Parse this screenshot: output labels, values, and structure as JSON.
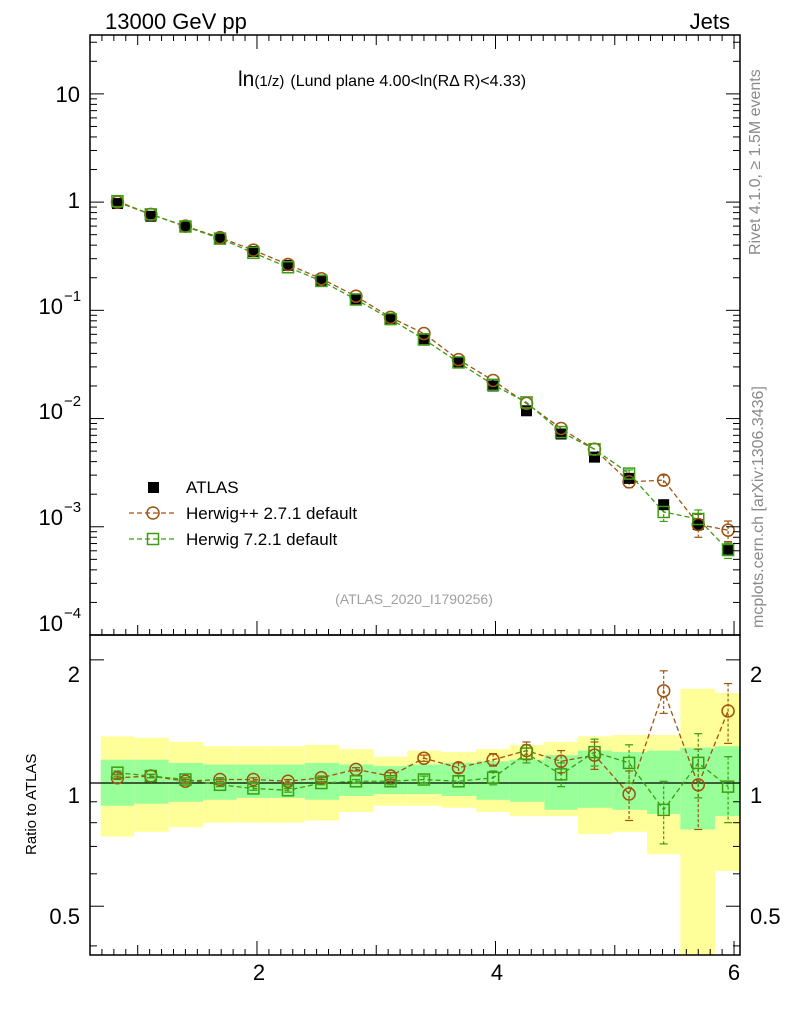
{
  "header": {
    "left": "13000 GeV pp",
    "right": "Jets"
  },
  "plot_title": {
    "main": "ln",
    "paren": "(1/z)",
    "rest": "(Lund plane 4.00<ln(RΔ R)<4.33)"
  },
  "side_labels": {
    "rivet": "Rivet 4.1.0, ≥ 1.5M events",
    "mcplots": "mcplots.cern.ch [arXiv:1306.3436]"
  },
  "watermark": "(ATLAS_2020_I1790256)",
  "ratio_ylabel": "Ratio to ATLAS",
  "upper_y_ticks": [
    {
      "base": "10",
      "exp": ""
    },
    {
      "base": "1",
      "exp": ""
    },
    {
      "base": "10",
      "exp": "−1"
    },
    {
      "base": "10",
      "exp": "−2"
    },
    {
      "base": "10",
      "exp": "−3"
    },
    {
      "base": "10",
      "exp": "−4"
    }
  ],
  "ratio_y_ticks": [
    "2",
    "1",
    "0.5"
  ],
  "x_ticks": [
    "2",
    "4",
    "6"
  ],
  "legend": {
    "atlas": "ATLAS",
    "herwigpp": "Herwig++ 2.7.1 default",
    "herwig7": "Herwig 7.2.1 default"
  },
  "colors": {
    "atlas": "#000000",
    "herwigpp": "#a0520f",
    "herwig7": "#3c9c12",
    "band_inner": "#99ff99",
    "band_outer": "#ffff99"
  },
  "chart_data": {
    "type": "scatter",
    "x_range": [
      0.6,
      6.05
    ],
    "y_range_log": [
      0.0001,
      35
    ],
    "ratio_range_log": [
      0.38,
      2.3
    ],
    "bins": [
      [
        0.69,
        0.97
      ],
      [
        0.97,
        1.26
      ],
      [
        1.26,
        1.55
      ],
      [
        1.55,
        1.83
      ],
      [
        1.83,
        2.12
      ],
      [
        2.12,
        2.4
      ],
      [
        2.4,
        2.69
      ],
      [
        2.69,
        2.98
      ],
      [
        2.98,
        3.26
      ],
      [
        3.26,
        3.55
      ],
      [
        3.55,
        3.84
      ],
      [
        3.84,
        4.12
      ],
      [
        4.12,
        4.41
      ],
      [
        4.41,
        4.69
      ],
      [
        4.69,
        4.98
      ],
      [
        4.98,
        5.27
      ],
      [
        5.27,
        5.55
      ],
      [
        5.55,
        5.84
      ],
      [
        5.84,
        6.05
      ]
    ],
    "x": [
      0.83,
      1.11,
      1.4,
      1.69,
      1.97,
      2.26,
      2.54,
      2.83,
      3.12,
      3.4,
      3.69,
      3.98,
      4.26,
      4.55,
      4.83,
      5.12,
      5.41,
      5.7,
      5.95
    ],
    "series": [
      {
        "name": "ATLAS",
        "values": [
          0.97,
          0.74,
          0.59,
          0.46,
          0.35,
          0.26,
          0.19,
          0.125,
          0.083,
          0.053,
          0.033,
          0.02,
          0.0118,
          0.0072,
          0.0044,
          0.0028,
          0.0016,
          0.00105,
          0.00062
        ]
      },
      {
        "name": "Herwig++ 2.7.1 default",
        "values": [
          1.0,
          0.77,
          0.6,
          0.47,
          0.36,
          0.265,
          0.196,
          0.135,
          0.086,
          0.061,
          0.035,
          0.0225,
          0.0138,
          0.0081,
          0.0052,
          0.0026,
          0.0027,
          0.00105,
          0.00093
        ],
        "errors": [
          0,
          0,
          0,
          0,
          0,
          0,
          0,
          0,
          0,
          0,
          0,
          0,
          0,
          0,
          0,
          0.0003,
          0.0003,
          0.00025,
          0.0002
        ]
      },
      {
        "name": "Herwig 7.2.1 default",
        "values": [
          1.02,
          0.77,
          0.595,
          0.46,
          0.34,
          0.25,
          0.187,
          0.126,
          0.083,
          0.054,
          0.033,
          0.0205,
          0.0141,
          0.0075,
          0.0052,
          0.0031,
          0.00137,
          0.00118,
          0.00061
        ],
        "errors": [
          0,
          0,
          0,
          0,
          0,
          0,
          0,
          0,
          0,
          0,
          0,
          0,
          0,
          0,
          0,
          0.00025,
          0.00025,
          0.00025,
          0.0001
        ]
      }
    ],
    "ratio": {
      "herwigpp": [
        1.03,
        1.04,
        1.01,
        1.02,
        1.02,
        1.01,
        1.03,
        1.08,
        1.04,
        1.15,
        1.09,
        1.14,
        1.2,
        1.13,
        1.17,
        0.94,
        1.68,
        0.99,
        1.5
      ],
      "herwigpp_err": [
        0.01,
        0.01,
        0.01,
        0.01,
        0.01,
        0.01,
        0.01,
        0.01,
        0.02,
        0.02,
        0.03,
        0.04,
        0.06,
        0.07,
        0.09,
        0.13,
        0.2,
        0.22,
        0.25
      ],
      "herwig7": [
        1.06,
        1.04,
        1.02,
        0.99,
        0.97,
        0.96,
        1.0,
        1.01,
        1.01,
        1.02,
        1.01,
        1.03,
        1.18,
        1.05,
        1.19,
        1.12,
        0.86,
        1.12,
        0.98
      ],
      "herwig7_err": [
        0.01,
        0.01,
        0.01,
        0.01,
        0.01,
        0.01,
        0.01,
        0.01,
        0.02,
        0.02,
        0.03,
        0.04,
        0.06,
        0.07,
        0.09,
        0.12,
        0.15,
        0.2,
        0.18
      ],
      "band_inner": [
        [
          0.88,
          1.14
        ],
        [
          0.89,
          1.14
        ],
        [
          0.9,
          1.12
        ],
        [
          0.91,
          1.11
        ],
        [
          0.92,
          1.11
        ],
        [
          0.92,
          1.11
        ],
        [
          0.91,
          1.12
        ],
        [
          0.93,
          1.11
        ],
        [
          0.94,
          1.1
        ],
        [
          0.94,
          1.11
        ],
        [
          0.93,
          1.12
        ],
        [
          0.91,
          1.13
        ],
        [
          0.9,
          1.14
        ],
        [
          0.86,
          1.17
        ],
        [
          0.87,
          1.2
        ],
        [
          0.86,
          1.19
        ],
        [
          0.84,
          1.2
        ],
        [
          0.77,
          1.22
        ],
        [
          0.83,
          1.23
        ]
      ],
      "band_outer": [
        [
          0.74,
          1.3
        ],
        [
          0.76,
          1.29
        ],
        [
          0.78,
          1.26
        ],
        [
          0.8,
          1.23
        ],
        [
          0.8,
          1.23
        ],
        [
          0.8,
          1.23
        ],
        [
          0.81,
          1.24
        ],
        [
          0.85,
          1.21
        ],
        [
          0.88,
          1.16
        ],
        [
          0.88,
          1.2
        ],
        [
          0.87,
          1.19
        ],
        [
          0.85,
          1.21
        ],
        [
          0.83,
          1.24
        ],
        [
          0.83,
          1.26
        ],
        [
          0.75,
          1.3
        ],
        [
          0.76,
          1.31
        ],
        [
          0.67,
          1.31
        ],
        [
          0.38,
          1.7
        ],
        [
          0.61,
          1.66
        ]
      ]
    }
  }
}
